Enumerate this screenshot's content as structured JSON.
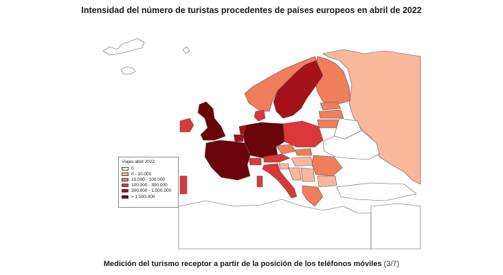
{
  "title": "Intensidad del número de turistas procedentes de países europeos en abril de 2022",
  "legend": {
    "title": "Viajes abril 2022",
    "items": [
      {
        "label": "0",
        "color": "#ffffff"
      },
      {
        "label": "0 - 10.000",
        "color": "#f9b79b"
      },
      {
        "label": "10.000 - 100.000",
        "color": "#f07d5c"
      },
      {
        "label": "100.000 - 300.000",
        "color": "#d9393a"
      },
      {
        "label": "300.000 - 1.500.000",
        "color": "#a51219"
      },
      {
        "label": "> 1.500.000",
        "color": "#6b0409"
      }
    ]
  },
  "caption": {
    "main": "Medición del turismo receptor a partir de la posición de los teléfonos móviles",
    "page": "(3/7)"
  }
}
